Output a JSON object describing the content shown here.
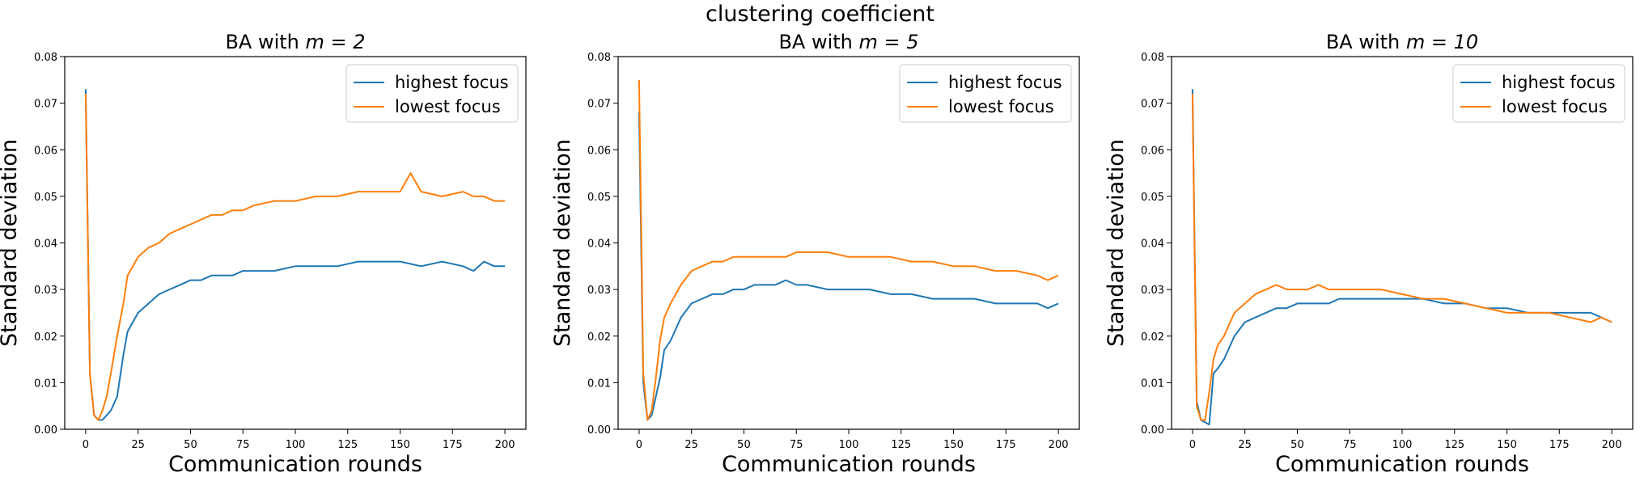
{
  "figure": {
    "suptitle": "clustering coefficient"
  },
  "colors": {
    "highest_focus": "#1f77b4",
    "lowest_focus": "#ff7f0e",
    "axes": "#000000",
    "legend_border": "#cccccc"
  },
  "chart_data": [
    {
      "type": "line",
      "title_prefix": "BA with ",
      "title_math": "m = 2",
      "xlabel": "Communication rounds",
      "ylabel": "Standard deviation",
      "xlim": [
        -10,
        210
      ],
      "ylim": [
        0,
        0.08
      ],
      "xticks": [
        0,
        25,
        50,
        75,
        100,
        125,
        150,
        175,
        200
      ],
      "xtick_labels": [
        "0",
        "25",
        "50",
        "75",
        "100",
        "125",
        "150",
        "175",
        "200"
      ],
      "yticks": [
        0,
        0.01,
        0.02,
        0.03,
        0.04,
        0.05,
        0.06,
        0.07,
        0.08
      ],
      "ytick_labels": [
        "0.00",
        "0.01",
        "0.02",
        "0.03",
        "0.04",
        "0.05",
        "0.06",
        "0.07",
        "0.08"
      ],
      "legend_loc": "upper right",
      "series": [
        {
          "name": "highest focus",
          "color": "#1f77b4",
          "x": [
            0,
            2,
            4,
            6,
            8,
            10,
            12,
            15,
            18,
            20,
            25,
            30,
            35,
            40,
            45,
            50,
            55,
            60,
            65,
            70,
            75,
            80,
            90,
            100,
            110,
            120,
            130,
            140,
            150,
            160,
            170,
            180,
            185,
            190,
            195,
            200
          ],
          "y": [
            0.073,
            0.012,
            0.003,
            0.002,
            0.002,
            0.003,
            0.004,
            0.007,
            0.016,
            0.021,
            0.025,
            0.027,
            0.029,
            0.03,
            0.031,
            0.032,
            0.032,
            0.033,
            0.033,
            0.033,
            0.034,
            0.034,
            0.034,
            0.035,
            0.035,
            0.035,
            0.036,
            0.036,
            0.036,
            0.035,
            0.036,
            0.035,
            0.034,
            0.036,
            0.035,
            0.035
          ]
        },
        {
          "name": "lowest focus",
          "color": "#ff7f0e",
          "x": [
            0,
            2,
            4,
            6,
            8,
            10,
            12,
            15,
            18,
            20,
            25,
            30,
            35,
            40,
            45,
            50,
            55,
            60,
            65,
            70,
            75,
            80,
            90,
            100,
            110,
            120,
            130,
            140,
            150,
            155,
            160,
            170,
            180,
            185,
            190,
            195,
            200
          ],
          "y": [
            0.072,
            0.012,
            0.003,
            0.002,
            0.004,
            0.007,
            0.012,
            0.02,
            0.027,
            0.033,
            0.037,
            0.039,
            0.04,
            0.042,
            0.043,
            0.044,
            0.045,
            0.046,
            0.046,
            0.047,
            0.047,
            0.048,
            0.049,
            0.049,
            0.05,
            0.05,
            0.051,
            0.051,
            0.051,
            0.055,
            0.051,
            0.05,
            0.051,
            0.05,
            0.05,
            0.049,
            0.049
          ]
        }
      ]
    },
    {
      "type": "line",
      "title_prefix": "BA with ",
      "title_math": "m = 5",
      "xlabel": "Communication rounds",
      "ylabel": "Standard deviation",
      "xlim": [
        -10,
        210
      ],
      "ylim": [
        0,
        0.08
      ],
      "xticks": [
        0,
        25,
        50,
        75,
        100,
        125,
        150,
        175,
        200
      ],
      "xtick_labels": [
        "0",
        "25",
        "50",
        "75",
        "100",
        "125",
        "150",
        "175",
        "200"
      ],
      "yticks": [
        0,
        0.01,
        0.02,
        0.03,
        0.04,
        0.05,
        0.06,
        0.07,
        0.08
      ],
      "ytick_labels": [
        "0.00",
        "0.01",
        "0.02",
        "0.03",
        "0.04",
        "0.05",
        "0.06",
        "0.07",
        "0.08"
      ],
      "legend_loc": "upper right",
      "series": [
        {
          "name": "highest focus",
          "color": "#1f77b4",
          "x": [
            0,
            2,
            4,
            6,
            8,
            10,
            12,
            15,
            20,
            25,
            30,
            35,
            40,
            45,
            50,
            55,
            60,
            65,
            70,
            75,
            80,
            90,
            100,
            110,
            120,
            130,
            140,
            150,
            160,
            170,
            180,
            190,
            195,
            200
          ],
          "y": [
            0.068,
            0.01,
            0.002,
            0.003,
            0.007,
            0.011,
            0.017,
            0.019,
            0.024,
            0.027,
            0.028,
            0.029,
            0.029,
            0.03,
            0.03,
            0.031,
            0.031,
            0.031,
            0.032,
            0.031,
            0.031,
            0.03,
            0.03,
            0.03,
            0.029,
            0.029,
            0.028,
            0.028,
            0.028,
            0.027,
            0.027,
            0.027,
            0.026,
            0.027
          ]
        },
        {
          "name": "lowest focus",
          "color": "#ff7f0e",
          "x": [
            0,
            2,
            4,
            6,
            8,
            10,
            12,
            15,
            20,
            25,
            30,
            35,
            40,
            45,
            50,
            55,
            60,
            65,
            70,
            75,
            80,
            90,
            100,
            110,
            120,
            130,
            140,
            150,
            160,
            170,
            180,
            190,
            195,
            200
          ],
          "y": [
            0.075,
            0.012,
            0.002,
            0.004,
            0.011,
            0.019,
            0.024,
            0.027,
            0.031,
            0.034,
            0.035,
            0.036,
            0.036,
            0.037,
            0.037,
            0.037,
            0.037,
            0.037,
            0.037,
            0.038,
            0.038,
            0.038,
            0.037,
            0.037,
            0.037,
            0.036,
            0.036,
            0.035,
            0.035,
            0.034,
            0.034,
            0.033,
            0.032,
            0.033
          ]
        }
      ]
    },
    {
      "type": "line",
      "title_prefix": "BA with ",
      "title_math": "m = 10",
      "xlabel": "Communication rounds",
      "ylabel": "Standard deviation",
      "xlim": [
        -10,
        210
      ],
      "ylim": [
        0,
        0.08
      ],
      "xticks": [
        0,
        25,
        50,
        75,
        100,
        125,
        150,
        175,
        200
      ],
      "xtick_labels": [
        "0",
        "25",
        "50",
        "75",
        "100",
        "125",
        "150",
        "175",
        "200"
      ],
      "yticks": [
        0,
        0.01,
        0.02,
        0.03,
        0.04,
        0.05,
        0.06,
        0.07,
        0.08
      ],
      "ytick_labels": [
        "0.00",
        "0.01",
        "0.02",
        "0.03",
        "0.04",
        "0.05",
        "0.06",
        "0.07",
        "0.08"
      ],
      "legend_loc": "upper right",
      "series": [
        {
          "name": "highest focus",
          "color": "#1f77b4",
          "x": [
            0,
            2,
            4,
            6,
            8,
            10,
            12,
            15,
            20,
            25,
            30,
            35,
            40,
            45,
            50,
            55,
            60,
            65,
            70,
            75,
            80,
            90,
            100,
            110,
            120,
            130,
            140,
            150,
            160,
            170,
            180,
            190,
            195,
            200
          ],
          "y": [
            0.073,
            0.006,
            0.002,
            0.0015,
            0.001,
            0.012,
            0.013,
            0.015,
            0.02,
            0.023,
            0.024,
            0.025,
            0.026,
            0.026,
            0.027,
            0.027,
            0.027,
            0.027,
            0.028,
            0.028,
            0.028,
            0.028,
            0.028,
            0.028,
            0.027,
            0.027,
            0.026,
            0.026,
            0.025,
            0.025,
            0.025,
            0.025,
            0.024,
            0.023
          ]
        },
        {
          "name": "lowest focus",
          "color": "#ff7f0e",
          "x": [
            0,
            2,
            4,
            6,
            8,
            10,
            12,
            15,
            20,
            25,
            30,
            35,
            40,
            45,
            50,
            55,
            60,
            65,
            70,
            75,
            80,
            90,
            100,
            110,
            120,
            130,
            140,
            150,
            160,
            170,
            180,
            190,
            195,
            200
          ],
          "y": [
            0.072,
            0.005,
            0.002,
            0.002,
            0.008,
            0.015,
            0.018,
            0.02,
            0.025,
            0.027,
            0.029,
            0.03,
            0.031,
            0.03,
            0.03,
            0.03,
            0.031,
            0.03,
            0.03,
            0.03,
            0.03,
            0.03,
            0.029,
            0.028,
            0.028,
            0.027,
            0.026,
            0.025,
            0.025,
            0.025,
            0.024,
            0.023,
            0.024,
            0.023
          ]
        }
      ]
    }
  ]
}
